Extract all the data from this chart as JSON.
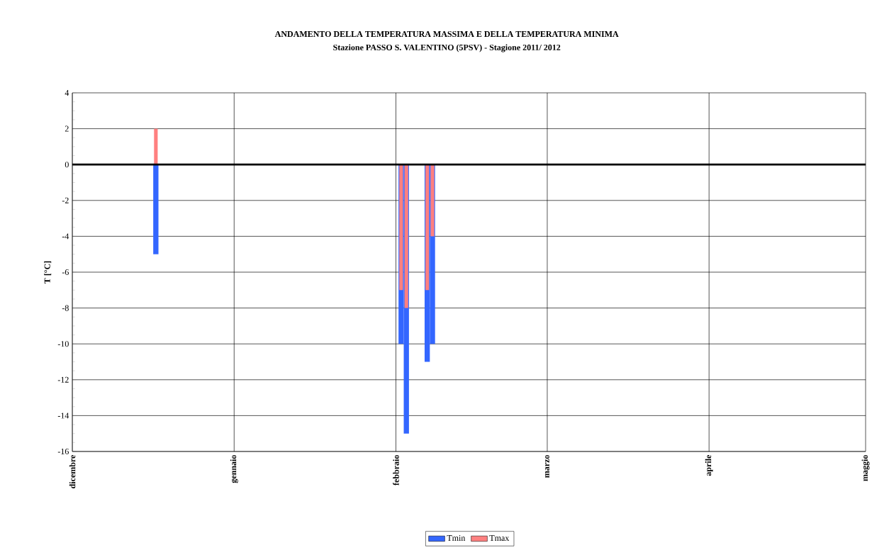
{
  "chart_data": {
    "type": "bar",
    "title": "ANDAMENTO DELLA TEMPERATURA MASSIMA  E DELLA TEMPERATURA MINIMA",
    "subtitle": "Stazione PASSO S. VALENTINO (5PSV) - Stagione  2011/ 2012",
    "ylabel": "T [°C]",
    "x": [
      "2011-12-17",
      "2012-02-02",
      "2012-02-03",
      "2012-02-07",
      "2012-02-08"
    ],
    "series": [
      {
        "name": "Tmin",
        "color": "#3366ff",
        "values": [
          -5,
          -10,
          -15,
          -11,
          -10
        ]
      },
      {
        "name": "Tmax",
        "color": "#ff8080",
        "values": [
          2,
          -7,
          -8,
          -7,
          -4
        ]
      }
    ],
    "xlim": [
      "2011-12-01",
      "2012-05-01"
    ],
    "xticks": [
      {
        "value": "2011-12-01",
        "label": "dicembre"
      },
      {
        "value": "2012-01-01",
        "label": "gennaio"
      },
      {
        "value": "2012-02-01",
        "label": "febbraio"
      },
      {
        "value": "2012-03-01",
        "label": "marzo"
      },
      {
        "value": "2012-04-01",
        "label": "aprile"
      },
      {
        "value": "2012-05-01",
        "label": "maggio"
      }
    ],
    "ylim": [
      -16,
      4
    ],
    "yticks": [
      -16,
      -14,
      -12,
      -10,
      -8,
      -6,
      -4,
      -2,
      0,
      2,
      4
    ],
    "ref_lines": [
      {
        "axis": "y",
        "value": 0,
        "color": "#000000"
      }
    ],
    "grid": true,
    "legend": "bottom"
  }
}
